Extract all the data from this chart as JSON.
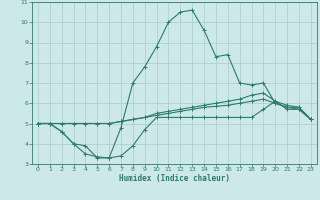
{
  "xlabel": "Humidex (Indice chaleur)",
  "xlim": [
    -0.5,
    23.5
  ],
  "ylim": [
    3,
    11
  ],
  "yticks": [
    3,
    4,
    5,
    6,
    7,
    8,
    9,
    10,
    11
  ],
  "xticks": [
    0,
    1,
    2,
    3,
    4,
    5,
    6,
    7,
    8,
    9,
    10,
    11,
    12,
    13,
    14,
    15,
    16,
    17,
    18,
    19,
    20,
    21,
    22,
    23
  ],
  "bg_color": "#cce8e8",
  "grid_color": "#aacccc",
  "line_color": "#2d7a6e",
  "line1_x": [
    0,
    1,
    2,
    3,
    4,
    5,
    6,
    7,
    8,
    9,
    10,
    11,
    12,
    13,
    14,
    15,
    16,
    17,
    18,
    19,
    20,
    21,
    22,
    23
  ],
  "line1_y": [
    5.0,
    5.0,
    4.6,
    4.0,
    3.9,
    3.3,
    3.3,
    3.4,
    3.9,
    4.7,
    5.3,
    5.3,
    5.3,
    5.3,
    5.3,
    5.3,
    5.3,
    5.3,
    5.3,
    5.7,
    6.1,
    5.7,
    5.7,
    5.2
  ],
  "line2_x": [
    0,
    1,
    2,
    3,
    4,
    5,
    6,
    7,
    8,
    9,
    10,
    11,
    12,
    13,
    14,
    15,
    16,
    17,
    18,
    19,
    20,
    21,
    22,
    23
  ],
  "line2_y": [
    5.0,
    5.0,
    5.0,
    5.0,
    5.0,
    5.0,
    5.0,
    5.1,
    5.2,
    5.3,
    5.4,
    5.5,
    5.6,
    5.7,
    5.8,
    5.85,
    5.9,
    6.0,
    6.1,
    6.2,
    6.0,
    5.8,
    5.7,
    5.2
  ],
  "line3_x": [
    0,
    1,
    2,
    3,
    4,
    5,
    6,
    7,
    8,
    9,
    10,
    11,
    12,
    13,
    14,
    15,
    16,
    17,
    18,
    19,
    20,
    21,
    22,
    23
  ],
  "line3_y": [
    5.0,
    5.0,
    5.0,
    5.0,
    5.0,
    5.0,
    5.0,
    5.1,
    5.2,
    5.3,
    5.5,
    5.6,
    5.7,
    5.8,
    5.9,
    6.0,
    6.1,
    6.2,
    6.4,
    6.5,
    6.1,
    5.9,
    5.8,
    5.2
  ],
  "line4_x": [
    0,
    1,
    2,
    3,
    4,
    5,
    6,
    7,
    8,
    9,
    10,
    11,
    12,
    13,
    14,
    15,
    16,
    17,
    18,
    19,
    20,
    21,
    22,
    23
  ],
  "line4_y": [
    5.0,
    5.0,
    4.6,
    4.0,
    3.5,
    3.35,
    3.3,
    4.8,
    7.0,
    7.8,
    8.8,
    10.0,
    10.5,
    10.6,
    9.6,
    8.3,
    8.4,
    7.0,
    6.9,
    7.0,
    6.0,
    5.8,
    5.8,
    5.2
  ]
}
